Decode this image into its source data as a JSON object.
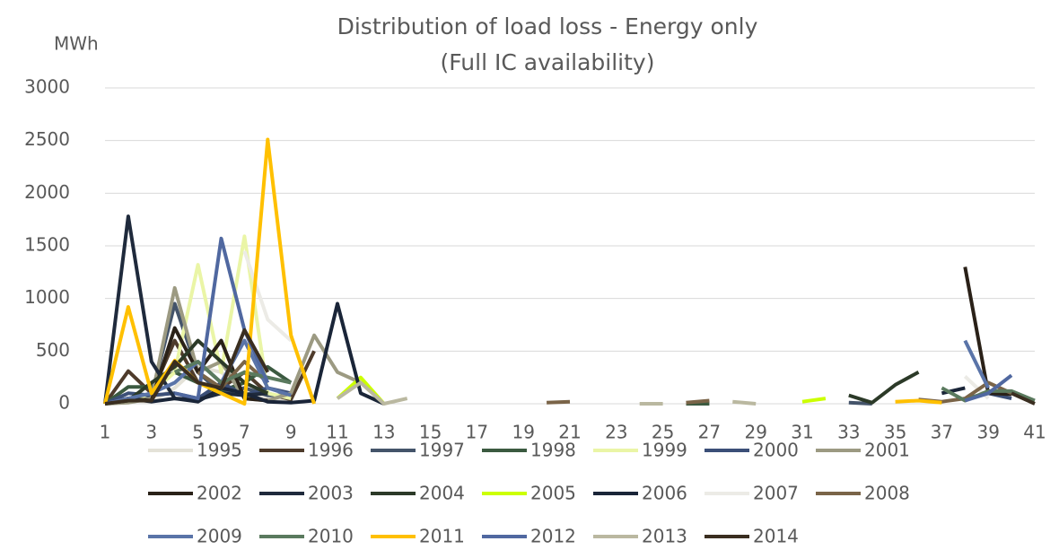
{
  "chart_data": {
    "type": "line",
    "title": "Distribution of load loss  - Energy only",
    "subtitle": "(Full IC availability)",
    "y_label": "MWh",
    "x": [
      1,
      2,
      3,
      4,
      5,
      6,
      7,
      8,
      9,
      10,
      11,
      12,
      13,
      14,
      15,
      16,
      17,
      18,
      19,
      20,
      21,
      22,
      23,
      24,
      25,
      26,
      27,
      28,
      29,
      30,
      31,
      32,
      33,
      34,
      35,
      36,
      37,
      38,
      39,
      40,
      41
    ],
    "xlim": [
      1,
      41
    ],
    "xticks": [
      1,
      3,
      5,
      7,
      9,
      11,
      13,
      15,
      17,
      19,
      21,
      23,
      25,
      27,
      29,
      31,
      33,
      35,
      37,
      39,
      41
    ],
    "ylim": [
      0,
      3000
    ],
    "yticks": [
      0,
      500,
      1000,
      1500,
      2000,
      2500,
      3000
    ],
    "grid": true,
    "series": [
      {
        "name": "1995",
        "color": "#e4e2d8",
        "values": [
          0,
          30,
          20,
          150,
          350,
          300,
          120,
          60,
          30,
          null,
          null,
          null,
          null,
          null,
          null,
          null,
          null,
          null,
          null,
          null,
          null,
          null,
          null,
          null,
          null,
          null,
          null,
          null,
          null,
          null,
          null,
          null,
          null,
          null,
          null,
          null,
          null,
          null,
          null,
          null,
          null
        ]
      },
      {
        "name": "1996",
        "color": "#4e3b2b",
        "values": [
          0,
          310,
          100,
          600,
          200,
          150,
          300,
          100,
          40,
          500,
          null,
          null,
          null,
          null,
          null,
          null,
          null,
          null,
          null,
          null,
          null,
          null,
          null,
          null,
          null,
          null,
          null,
          null,
          null,
          null,
          null,
          null,
          null,
          null,
          null,
          null,
          null,
          null,
          null,
          null,
          null
        ]
      },
      {
        "name": "1997",
        "color": "#44546a",
        "values": [
          0,
          50,
          80,
          950,
          300,
          100,
          150,
          80,
          80,
          null,
          null,
          null,
          null,
          null,
          null,
          null,
          null,
          null,
          null,
          null,
          null,
          null,
          null,
          null,
          null,
          null,
          null,
          null,
          null,
          null,
          null,
          null,
          10,
          0,
          null,
          null,
          null,
          null,
          null,
          null,
          null
        ]
      },
      {
        "name": "1998",
        "color": "#3b5a40",
        "values": [
          0,
          160,
          160,
          300,
          200,
          120,
          200,
          350,
          200,
          null,
          null,
          null,
          null,
          null,
          null,
          null,
          null,
          null,
          null,
          null,
          null,
          null,
          null,
          null,
          null,
          0,
          0,
          null,
          null,
          null,
          null,
          null,
          null,
          null,
          null,
          null,
          null,
          null,
          null,
          null,
          null
        ]
      },
      {
        "name": "1999",
        "color": "#eaf5a6",
        "values": [
          0,
          20,
          100,
          300,
          1320,
          300,
          1590,
          100,
          50,
          null,
          null,
          null,
          null,
          null,
          null,
          null,
          null,
          null,
          null,
          null,
          null,
          null,
          null,
          null,
          null,
          null,
          null,
          null,
          null,
          null,
          null,
          null,
          null,
          null,
          null,
          null,
          null,
          null,
          null,
          null,
          null
        ]
      },
      {
        "name": "2000",
        "color": "#3b4f78",
        "values": [
          0,
          100,
          80,
          100,
          50,
          200,
          80,
          150,
          100,
          null,
          null,
          null,
          null,
          null,
          null,
          null,
          null,
          null,
          null,
          null,
          null,
          null,
          null,
          null,
          null,
          null,
          null,
          null,
          null,
          null,
          null,
          null,
          null,
          null,
          null,
          null,
          null,
          50,
          100,
          50,
          null
        ]
      },
      {
        "name": "2001",
        "color": "#9c9a82",
        "values": [
          0,
          10,
          50,
          1100,
          300,
          400,
          50,
          30,
          100,
          650,
          300,
          200,
          null,
          null,
          null,
          null,
          null,
          null,
          null,
          null,
          null,
          null,
          null,
          null,
          null,
          null,
          null,
          null,
          null,
          null,
          null,
          null,
          null,
          null,
          null,
          null,
          null,
          null,
          null,
          null,
          null
        ]
      },
      {
        "name": "2002",
        "color": "#2a2118",
        "values": [
          0,
          50,
          30,
          720,
          300,
          600,
          50,
          30,
          null,
          null,
          null,
          null,
          null,
          null,
          null,
          null,
          null,
          null,
          null,
          null,
          null,
          null,
          null,
          null,
          null,
          null,
          null,
          null,
          null,
          null,
          null,
          null,
          null,
          null,
          null,
          null,
          null,
          1300,
          100,
          90,
          null
        ]
      },
      {
        "name": "2003",
        "color": "#1f2a3c",
        "values": [
          0,
          1780,
          400,
          50,
          40,
          100,
          80,
          100,
          null,
          null,
          null,
          null,
          null,
          null,
          null,
          null,
          null,
          null,
          null,
          null,
          null,
          null,
          null,
          null,
          null,
          null,
          null,
          null,
          null,
          null,
          null,
          null,
          null,
          null,
          null,
          null,
          null,
          null,
          null,
          null,
          null
        ]
      },
      {
        "name": "2004",
        "color": "#2c3a28",
        "values": [
          0,
          30,
          200,
          350,
          600,
          400,
          200,
          100,
          null,
          null,
          null,
          null,
          null,
          null,
          null,
          null,
          null,
          null,
          null,
          null,
          null,
          null,
          null,
          null,
          null,
          null,
          null,
          null,
          null,
          null,
          null,
          null,
          80,
          10,
          180,
          300,
          null,
          null,
          null,
          null,
          null
        ]
      },
      {
        "name": "2005",
        "color": "#ccff00",
        "values": [
          null,
          null,
          null,
          null,
          null,
          null,
          null,
          null,
          null,
          null,
          50,
          250,
          0,
          null,
          null,
          null,
          null,
          null,
          null,
          null,
          null,
          null,
          null,
          null,
          null,
          null,
          null,
          null,
          null,
          null,
          20,
          50,
          null,
          null,
          null,
          null,
          null,
          null,
          null,
          null,
          null
        ]
      },
      {
        "name": "2006",
        "color": "#1a2538",
        "values": [
          0,
          50,
          20,
          50,
          20,
          150,
          100,
          20,
          10,
          30,
          950,
          100,
          0,
          null,
          null,
          null,
          null,
          null,
          null,
          null,
          null,
          null,
          null,
          null,
          null,
          null,
          null,
          null,
          null,
          null,
          null,
          null,
          null,
          null,
          null,
          null,
          100,
          150,
          null,
          null,
          null
        ]
      },
      {
        "name": "2007",
        "color": "#ecebe6",
        "values": [
          null,
          null,
          null,
          null,
          null,
          null,
          1450,
          800,
          600,
          null,
          null,
          null,
          null,
          null,
          null,
          null,
          null,
          null,
          null,
          null,
          null,
          null,
          null,
          null,
          null,
          null,
          null,
          null,
          null,
          null,
          null,
          null,
          null,
          null,
          null,
          null,
          null,
          260,
          50,
          null,
          null
        ]
      },
      {
        "name": "2008",
        "color": "#7a6448",
        "values": [
          null,
          null,
          null,
          null,
          300,
          150,
          400,
          200,
          null,
          null,
          null,
          null,
          null,
          null,
          null,
          null,
          null,
          null,
          null,
          10,
          20,
          null,
          null,
          null,
          null,
          10,
          30,
          null,
          null,
          null,
          null,
          null,
          null,
          null,
          null,
          40,
          20,
          50,
          200,
          100,
          null
        ]
      },
      {
        "name": "2009",
        "color": "#5a74a8",
        "values": [
          0,
          50,
          100,
          200,
          400,
          200,
          600,
          150,
          80,
          null,
          null,
          null,
          null,
          null,
          null,
          null,
          null,
          null,
          null,
          null,
          null,
          null,
          null,
          null,
          null,
          null,
          null,
          null,
          null,
          null,
          null,
          null,
          null,
          null,
          null,
          null,
          null,
          600,
          150,
          null,
          null
        ]
      },
      {
        "name": "2010",
        "color": "#5a7a5e",
        "values": [
          null,
          null,
          null,
          300,
          400,
          200,
          300,
          250,
          200,
          null,
          null,
          null,
          null,
          null,
          null,
          null,
          null,
          null,
          null,
          null,
          null,
          null,
          null,
          null,
          null,
          null,
          null,
          null,
          null,
          null,
          null,
          null,
          null,
          null,
          null,
          null,
          150,
          30,
          120,
          120,
          30
        ]
      },
      {
        "name": "2011",
        "color": "#ffc000",
        "values": [
          0,
          920,
          100,
          410,
          200,
          100,
          0,
          2510,
          650,
          0,
          null,
          null,
          null,
          null,
          null,
          null,
          null,
          null,
          null,
          null,
          null,
          null,
          null,
          null,
          null,
          null,
          null,
          null,
          null,
          null,
          null,
          null,
          null,
          null,
          20,
          30,
          10,
          null,
          null,
          null,
          null
        ]
      },
      {
        "name": "2012",
        "color": "#5068a0",
        "values": [
          null,
          null,
          null,
          100,
          50,
          1570,
          700,
          200,
          null,
          null,
          null,
          null,
          null,
          null,
          null,
          null,
          null,
          null,
          null,
          null,
          null,
          null,
          null,
          null,
          null,
          null,
          null,
          null,
          null,
          null,
          null,
          null,
          null,
          null,
          null,
          null,
          null,
          30,
          100,
          270,
          null
        ]
      },
      {
        "name": "2013",
        "color": "#bab8a0",
        "values": [
          null,
          null,
          null,
          null,
          null,
          null,
          null,
          null,
          null,
          null,
          50,
          200,
          0,
          50,
          null,
          null,
          null,
          null,
          null,
          null,
          null,
          null,
          null,
          0,
          0,
          null,
          null,
          20,
          0,
          null,
          null,
          null,
          null,
          null,
          null,
          null,
          null,
          null,
          null,
          null,
          null
        ]
      },
      {
        "name": "2014",
        "color": "#3a2e20",
        "values": [
          0,
          30,
          30,
          400,
          200,
          150,
          700,
          300,
          null,
          null,
          null,
          null,
          null,
          null,
          null,
          null,
          null,
          null,
          null,
          null,
          null,
          null,
          null,
          null,
          null,
          null,
          null,
          null,
          null,
          null,
          null,
          null,
          null,
          null,
          null,
          null,
          null,
          null,
          null,
          100,
          0
        ]
      }
    ]
  }
}
